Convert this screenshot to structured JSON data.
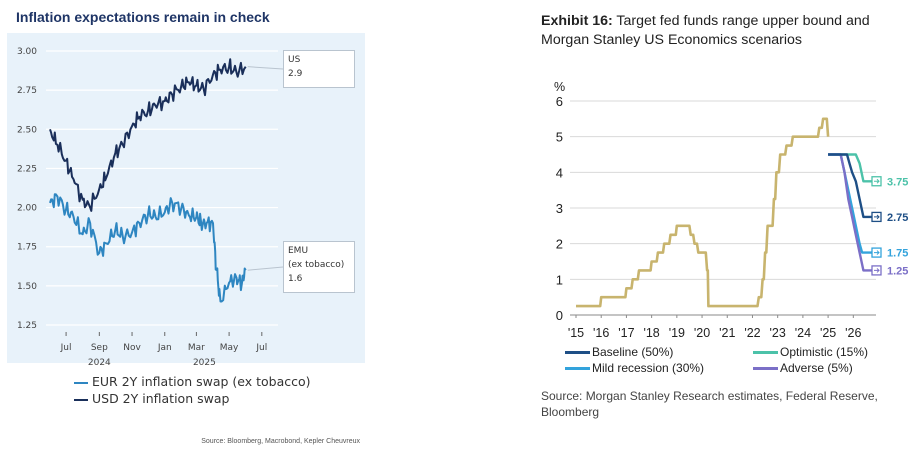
{
  "left": {
    "title": "Inflation expectations remain in check",
    "source": "Source: Bloomberg, Macrobond, Kepler Cheuvreux",
    "callouts": [
      {
        "line1": "US",
        "line2": "2.9"
      },
      {
        "line1": "EMU",
        "line2": "(ex tobacco)",
        "line3": "1.6"
      }
    ],
    "colors": {
      "eur": "#2e86c1",
      "usd": "#1a2f5a",
      "background": "#e8f2fa"
    }
  },
  "right": {
    "title_bold": "Exhibit 16:",
    "title_rest": " Target fed funds range upper bound and Morgan Stanley US Economics scenarios",
    "source": "Source: Morgan Stanley Research estimates, Federal Reserve, Bloomberg",
    "colors": {
      "history": "#c8b46e",
      "baseline": "#1e4f86",
      "optimistic": "#4cc2a9",
      "mild": "#33a3dc",
      "adverse": "#7b6fc7"
    }
  },
  "chart_data": [
    {
      "type": "line",
      "title": "Inflation expectations remain in check",
      "xlabel": "",
      "ylabel": "",
      "ylim": [
        1.25,
        3.0
      ],
      "x_ticks": [
        "Jul",
        "Sep",
        "Nov",
        "Jan",
        "Mar",
        "May",
        "Jul"
      ],
      "x_sublabels": [
        "2024",
        "2025"
      ],
      "y_ticks": [
        "1.25",
        "1.50",
        "1.75",
        "2.00",
        "2.25",
        "2.50",
        "2.75",
        "3.00"
      ],
      "grid": true,
      "legend_position": "bottom",
      "series": [
        {
          "name": "EUR 2Y inflation swap (ex tobacco)",
          "x": [
            "2024-06-01",
            "2024-06-15",
            "2024-07-01",
            "2024-07-15",
            "2024-08-01",
            "2024-08-15",
            "2024-09-01",
            "2024-09-15",
            "2024-10-01",
            "2024-10-15",
            "2024-11-01",
            "2024-11-15",
            "2024-12-01",
            "2024-12-15",
            "2025-01-01",
            "2025-01-15",
            "2025-02-01",
            "2025-02-15",
            "2025-03-01",
            "2025-03-10",
            "2025-03-20",
            "2025-04-01",
            "2025-04-08",
            "2025-04-15",
            "2025-05-01",
            "2025-05-15",
            "2025-05-25",
            "2025-06-01"
          ],
          "values": [
            2.03,
            2.07,
            1.99,
            1.94,
            1.83,
            1.9,
            1.71,
            1.77,
            1.86,
            1.81,
            1.84,
            1.9,
            1.96,
            1.94,
            1.97,
            2.03,
            2.0,
            1.95,
            1.94,
            1.9,
            1.9,
            1.9,
            1.6,
            1.4,
            1.52,
            1.55,
            1.52,
            1.6
          ]
        },
        {
          "name": "USD 2Y inflation swap",
          "x": [
            "2024-06-01",
            "2024-06-15",
            "2024-07-01",
            "2024-07-15",
            "2024-08-01",
            "2024-08-15",
            "2024-09-01",
            "2024-09-15",
            "2024-10-01",
            "2024-10-15",
            "2024-11-01",
            "2024-11-15",
            "2024-12-01",
            "2024-12-15",
            "2025-01-01",
            "2025-01-15",
            "2025-02-01",
            "2025-02-15",
            "2025-03-01",
            "2025-03-15",
            "2025-04-01",
            "2025-04-15",
            "2025-05-01",
            "2025-05-15",
            "2025-06-01"
          ],
          "values": [
            2.5,
            2.4,
            2.3,
            2.18,
            2.05,
            2.0,
            2.12,
            2.2,
            2.35,
            2.4,
            2.52,
            2.58,
            2.62,
            2.65,
            2.68,
            2.72,
            2.78,
            2.8,
            2.78,
            2.75,
            2.85,
            2.88,
            2.9,
            2.86,
            2.9
          ]
        }
      ]
    },
    {
      "type": "line",
      "title": "Target fed funds range upper bound and Morgan Stanley US Economics scenarios",
      "xlabel": "",
      "ylabel": "%",
      "ylim": [
        0,
        6
      ],
      "xlim": [
        2015,
        2026.9
      ],
      "x_ticks": [
        "'15",
        "'16",
        "'17",
        "'18",
        "'19",
        "'20",
        "'21",
        "'22",
        "'23",
        "'24",
        "'25",
        "'26"
      ],
      "y_ticks": [
        "0",
        "1",
        "2",
        "3",
        "4",
        "5",
        "6"
      ],
      "grid": true,
      "legend_position": "bottom",
      "end_labels": [
        "3.75",
        "2.75",
        "1.75",
        "1.25"
      ],
      "history": {
        "x": [
          2015.0,
          2015.96,
          2016.0,
          2016.96,
          2017.0,
          2017.2,
          2017.25,
          2017.45,
          2017.5,
          2017.96,
          2018.0,
          2018.2,
          2018.25,
          2018.45,
          2018.5,
          2018.7,
          2018.75,
          2018.96,
          2019.0,
          2019.5,
          2019.55,
          2019.65,
          2019.7,
          2019.8,
          2019.85,
          2020.15,
          2020.2,
          2020.23,
          2020.25,
          2022.2,
          2022.25,
          2022.35,
          2022.4,
          2022.45,
          2022.5,
          2022.55,
          2022.6,
          2022.8,
          2022.85,
          2022.9,
          2022.95,
          2023.05,
          2023.1,
          2023.3,
          2023.35,
          2023.55,
          2023.6,
          2024.6,
          2024.65,
          2024.75,
          2024.8,
          2024.95,
          2025.0
        ],
        "values": [
          0.25,
          0.25,
          0.5,
          0.5,
          0.75,
          0.75,
          1.0,
          1.0,
          1.25,
          1.25,
          1.5,
          1.5,
          1.75,
          1.75,
          2.0,
          2.0,
          2.25,
          2.25,
          2.5,
          2.5,
          2.25,
          2.25,
          2.0,
          2.0,
          1.75,
          1.75,
          1.25,
          1.25,
          0.25,
          0.25,
          0.5,
          0.5,
          1.0,
          1.0,
          1.75,
          1.75,
          2.5,
          2.5,
          3.25,
          3.25,
          4.0,
          4.0,
          4.5,
          4.5,
          4.75,
          4.75,
          5.0,
          5.0,
          5.25,
          5.25,
          5.5,
          5.5,
          5.0
        ]
      },
      "series": [
        {
          "name": "Baseline (50%)",
          "x": [
            2025.0,
            2025.75,
            2025.85,
            2025.95,
            2026.1,
            2026.25,
            2026.4,
            2026.9
          ],
          "values": [
            4.5,
            4.5,
            4.25,
            4.0,
            3.75,
            3.25,
            2.75,
            2.75
          ]
        },
        {
          "name": "Optimistic (15%)",
          "x": [
            2025.0,
            2026.1,
            2026.25,
            2026.4,
            2026.9
          ],
          "values": [
            4.5,
            4.5,
            4.25,
            3.75,
            3.75
          ]
        },
        {
          "name": "Mild recession (30%)",
          "x": [
            2025.0,
            2025.5,
            2025.65,
            2025.8,
            2025.95,
            2026.1,
            2026.25,
            2026.35,
            2026.9
          ],
          "values": [
            4.5,
            4.5,
            4.0,
            3.5,
            3.0,
            2.5,
            2.0,
            1.75,
            1.75
          ]
        },
        {
          "name": "Adverse (5%)",
          "x": [
            2025.0,
            2025.5,
            2025.65,
            2025.8,
            2025.95,
            2026.1,
            2026.25,
            2026.4,
            2026.9
          ],
          "values": [
            4.5,
            4.5,
            4.0,
            3.25,
            2.75,
            2.25,
            1.75,
            1.25,
            1.25
          ]
        }
      ]
    }
  ]
}
